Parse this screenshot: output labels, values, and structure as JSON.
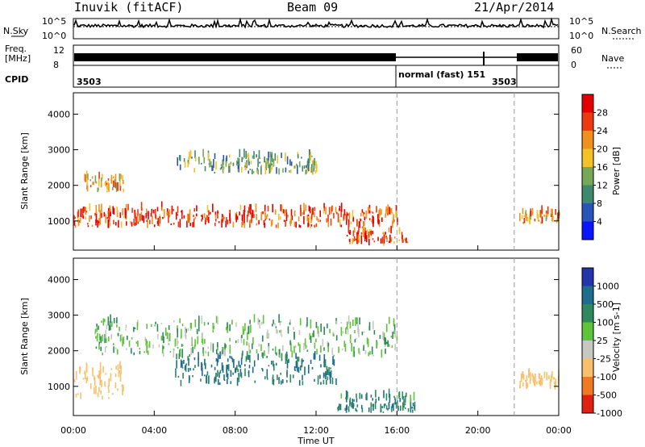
{
  "header": {
    "station": "Inuvik (fitACF)",
    "beam": "Beam 09",
    "date": "21/Apr/2014"
  },
  "summary": {
    "nsky_label": "N.Sky",
    "nsearch_label": "N.Search",
    "nsky_ticks": [
      "10^5",
      "10^0"
    ],
    "nsearch_ticks": [
      "10^5",
      "10^0"
    ],
    "freq_label": "Freq.",
    "freq_unit": "[MHz]",
    "freq_ticks": [
      "12",
      "8"
    ],
    "nave_label": "Nave",
    "nave_ticks": [
      "60",
      "0"
    ],
    "cpid_label": "CPID",
    "cpid_entries": [
      "3503",
      "normal (fast) 151",
      "3503"
    ]
  },
  "time_axis": {
    "label": "Time UT",
    "ticks": [
      "00:00",
      "04:00",
      "08:00",
      "12:00",
      "16:00",
      "20:00",
      "00:00"
    ],
    "hours": [
      0,
      4,
      8,
      12,
      16,
      20,
      24
    ]
  },
  "range_axis": {
    "label": "Slant Range [km]",
    "ticks": [
      "1000",
      "2000",
      "3000",
      "4000"
    ],
    "values": [
      1000,
      2000,
      3000,
      4000
    ],
    "range_km": [
      180,
      4600
    ]
  },
  "mode_change_hours": [
    16.0,
    21.8
  ],
  "power_colorbar": {
    "label": "Power [dB]",
    "ticks": [
      "4",
      "8",
      "12",
      "16",
      "20",
      "24",
      "28"
    ],
    "colors": [
      "#0a14ff",
      "#2a55b8",
      "#3f8a6e",
      "#77a85a",
      "#f2c227",
      "#f0901e",
      "#ee3a10",
      "#e40000"
    ]
  },
  "velocity_colorbar": {
    "label": "Velocity [m s-1]",
    "ticks": [
      "1000",
      "500",
      "100",
      "25",
      "-25",
      "-100",
      "-500",
      "-1000"
    ],
    "colors": [
      "#2335a8",
      "#1e6d8c",
      "#2e8a5c",
      "#5fc43a",
      "#c8c8c2",
      "#f8c06c",
      "#f07a22",
      "#e02010"
    ]
  },
  "chart_data": [
    {
      "type": "heatmap",
      "title": "Power",
      "xlabel": "Time UT",
      "ylabel": "Slant Range [km]",
      "xlim": [
        0,
        24
      ],
      "ylim": [
        180,
        4600
      ],
      "colorbar_range_db": [
        0,
        32
      ],
      "features": [
        {
          "t_start": 0.0,
          "t_end": 16.0,
          "range_km": [
            800,
            1300
          ],
          "power_db": 26
        },
        {
          "t_start": 0.5,
          "t_end": 2.5,
          "range_km": [
            1800,
            2200
          ],
          "power_db": 20
        },
        {
          "t_start": 5.0,
          "t_end": 12.0,
          "range_km": [
            2300,
            2800
          ],
          "power_db": 12
        },
        {
          "t_start": 13.5,
          "t_end": 16.5,
          "range_km": [
            300,
            700
          ],
          "power_db": 24
        },
        {
          "t_start": 22.0,
          "t_end": 24.0,
          "range_km": [
            900,
            1200
          ],
          "power_db": 22
        }
      ]
    },
    {
      "type": "heatmap",
      "title": "Velocity",
      "xlabel": "Time UT",
      "ylabel": "Slant Range [km]",
      "xlim": [
        0,
        24
      ],
      "ylim": [
        180,
        4600
      ],
      "colorbar_range_ms": [
        -1000,
        1000
      ],
      "features": [
        {
          "t_start": 0.0,
          "t_end": 2.5,
          "range_km": [
            600,
            1500
          ],
          "velocity_ms": -300
        },
        {
          "t_start": 1.0,
          "t_end": 16.0,
          "range_km": [
            1800,
            2800
          ],
          "velocity_ms": 0
        },
        {
          "t_start": 5.0,
          "t_end": 13.0,
          "range_km": [
            1000,
            1800
          ],
          "velocity_ms": 120
        },
        {
          "t_start": 13.0,
          "t_end": 17.0,
          "range_km": [
            250,
            700
          ],
          "velocity_ms": 80
        },
        {
          "t_start": 22.0,
          "t_end": 24.0,
          "range_km": [
            900,
            1300
          ],
          "velocity_ms": -400
        }
      ]
    }
  ]
}
